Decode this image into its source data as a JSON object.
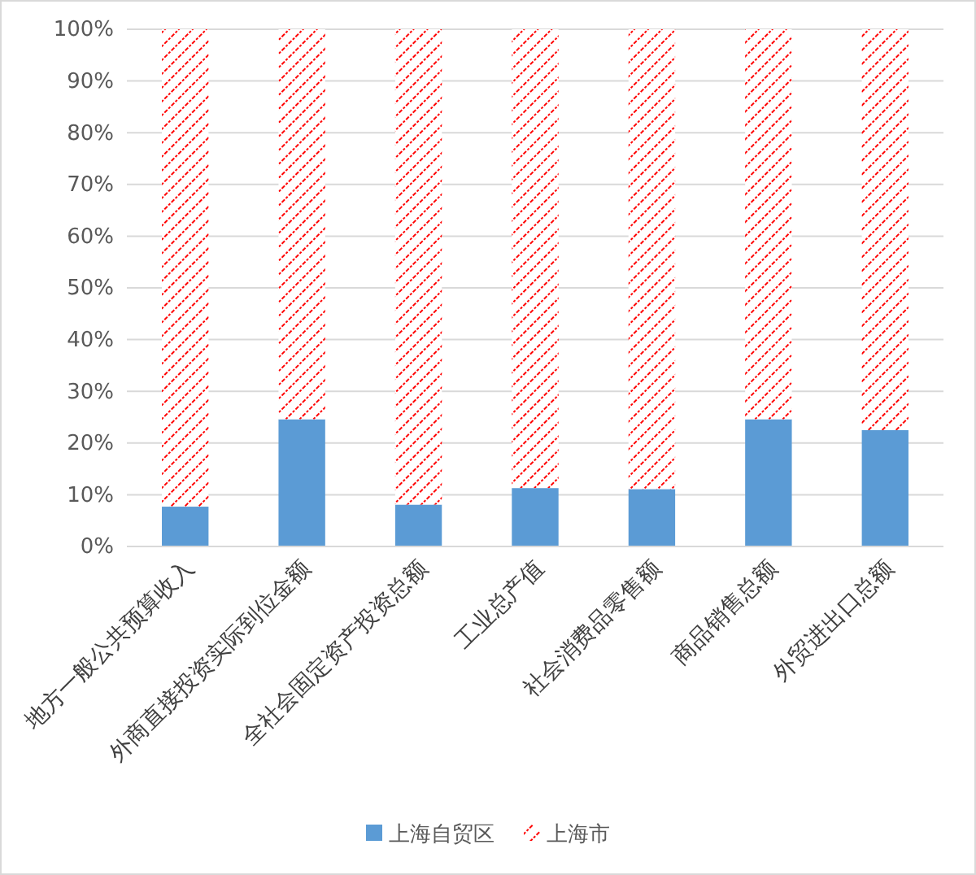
{
  "chart_data": {
    "type": "bar",
    "stacked": true,
    "categories": [
      "地方一般公共预算收入",
      "外商直接投资实际到位金额",
      "全社会固定资产投资总额",
      "工业总产值",
      "社会消费品零售额",
      "商品销售总额",
      "外贸进出口总额"
    ],
    "series": [
      {
        "name": "上海自贸区",
        "color": "#5b9bd5",
        "values": [
          7.7,
          24.6,
          8.1,
          11.3,
          11.1,
          24.6,
          22.5
        ]
      },
      {
        "name": "上海市",
        "color": "#ff0000",
        "values": [
          92.3,
          75.4,
          91.9,
          88.7,
          88.9,
          75.4,
          77.5
        ]
      }
    ],
    "ylim": [
      0,
      100
    ],
    "yticks": [
      {
        "value": 0,
        "label": "0%"
      },
      {
        "value": 10,
        "label": "10%"
      },
      {
        "value": 20,
        "label": "20%"
      },
      {
        "value": 30,
        "label": "30%"
      },
      {
        "value": 40,
        "label": "40%"
      },
      {
        "value": 50,
        "label": "50%"
      },
      {
        "value": 60,
        "label": "60%"
      },
      {
        "value": 70,
        "label": "70%"
      },
      {
        "value": 80,
        "label": "80%"
      },
      {
        "value": 90,
        "label": "90%"
      },
      {
        "value": 100,
        "label": "100%"
      }
    ],
    "grid": "y",
    "legend": "bottom"
  }
}
